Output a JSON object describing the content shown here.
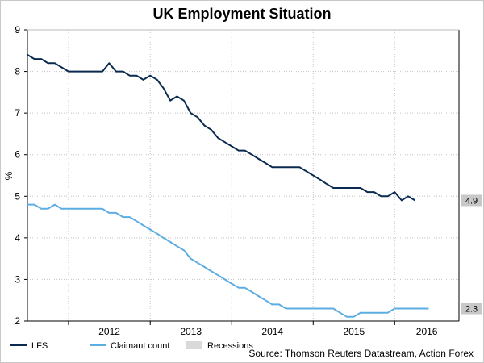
{
  "chart_data": {
    "type": "line",
    "title": "UK Employment Situation",
    "ylabel": "%",
    "xlabel": "",
    "ylim": [
      2,
      9
    ],
    "yticks": [
      "2",
      "3",
      "4",
      "5",
      "6",
      "7",
      "8",
      "9"
    ],
    "xlim": [
      "2011-07-01",
      "2016-10-15"
    ],
    "xtick_labels": [
      {
        "label": "2012",
        "date": "2012-01-01"
      },
      {
        "label": "2013",
        "date": "2013-01-01"
      },
      {
        "label": "2014",
        "date": "2014-01-01"
      },
      {
        "label": "2015",
        "date": "2015-01-01"
      },
      {
        "label": "2016",
        "date": "2016-01-01"
      }
    ],
    "grid": true,
    "legend_position": "bottom-left",
    "source": "Source: Thomson Reuters Datastream, Action Forex",
    "series": [
      {
        "name": "LFS",
        "color": "#0b2a4f",
        "last_label": "4.9",
        "points": [
          [
            "2011-07-01",
            8.4
          ],
          [
            "2011-08-01",
            8.3
          ],
          [
            "2011-09-01",
            8.3
          ],
          [
            "2011-10-01",
            8.2
          ],
          [
            "2011-11-01",
            8.2
          ],
          [
            "2011-12-01",
            8.1
          ],
          [
            "2012-01-01",
            8.0
          ],
          [
            "2012-02-01",
            8.0
          ],
          [
            "2012-03-01",
            8.0
          ],
          [
            "2012-04-01",
            8.0
          ],
          [
            "2012-05-01",
            8.0
          ],
          [
            "2012-06-01",
            8.0
          ],
          [
            "2012-07-01",
            8.2
          ],
          [
            "2012-08-01",
            8.0
          ],
          [
            "2012-09-01",
            8.0
          ],
          [
            "2012-10-01",
            7.9
          ],
          [
            "2012-11-01",
            7.9
          ],
          [
            "2012-12-01",
            7.8
          ],
          [
            "2013-01-01",
            7.9
          ],
          [
            "2013-02-01",
            7.8
          ],
          [
            "2013-03-01",
            7.6
          ],
          [
            "2013-04-01",
            7.3
          ],
          [
            "2013-05-01",
            7.4
          ],
          [
            "2013-06-01",
            7.3
          ],
          [
            "2013-07-01",
            7.0
          ],
          [
            "2013-08-01",
            6.9
          ],
          [
            "2013-09-01",
            6.7
          ],
          [
            "2013-10-01",
            6.6
          ],
          [
            "2013-11-01",
            6.4
          ],
          [
            "2013-12-01",
            6.3
          ],
          [
            "2014-01-01",
            6.2
          ],
          [
            "2014-02-01",
            6.1
          ],
          [
            "2014-03-01",
            6.1
          ],
          [
            "2014-04-01",
            6.0
          ],
          [
            "2014-05-01",
            5.9
          ],
          [
            "2014-06-01",
            5.8
          ],
          [
            "2014-07-01",
            5.7
          ],
          [
            "2014-08-01",
            5.7
          ],
          [
            "2014-09-01",
            5.7
          ],
          [
            "2014-10-01",
            5.7
          ],
          [
            "2014-11-01",
            5.7
          ],
          [
            "2014-12-01",
            5.6
          ],
          [
            "2015-01-01",
            5.5
          ],
          [
            "2015-02-01",
            5.4
          ],
          [
            "2015-03-01",
            5.3
          ],
          [
            "2015-04-01",
            5.2
          ],
          [
            "2015-05-01",
            5.2
          ],
          [
            "2015-06-01",
            5.2
          ],
          [
            "2015-07-01",
            5.2
          ],
          [
            "2015-08-01",
            5.2
          ],
          [
            "2015-09-01",
            5.1
          ],
          [
            "2015-10-01",
            5.1
          ],
          [
            "2015-11-01",
            5.0
          ],
          [
            "2015-12-01",
            5.0
          ],
          [
            "2016-01-01",
            5.1
          ],
          [
            "2016-02-01",
            4.9
          ],
          [
            "2016-03-01",
            5.0
          ],
          [
            "2016-04-01",
            4.9
          ]
        ]
      },
      {
        "name": "Claimant count",
        "color": "#5dade2",
        "last_label": "2.3",
        "points": [
          [
            "2011-07-01",
            4.8
          ],
          [
            "2011-08-01",
            4.8
          ],
          [
            "2011-09-01",
            4.7
          ],
          [
            "2011-10-01",
            4.7
          ],
          [
            "2011-11-01",
            4.8
          ],
          [
            "2011-12-01",
            4.7
          ],
          [
            "2012-01-01",
            4.7
          ],
          [
            "2012-02-01",
            4.7
          ],
          [
            "2012-03-01",
            4.7
          ],
          [
            "2012-04-01",
            4.7
          ],
          [
            "2012-05-01",
            4.7
          ],
          [
            "2012-06-01",
            4.7
          ],
          [
            "2012-07-01",
            4.6
          ],
          [
            "2012-08-01",
            4.6
          ],
          [
            "2012-09-01",
            4.5
          ],
          [
            "2012-10-01",
            4.5
          ],
          [
            "2012-11-01",
            4.4
          ],
          [
            "2012-12-01",
            4.3
          ],
          [
            "2013-01-01",
            4.2
          ],
          [
            "2013-02-01",
            4.1
          ],
          [
            "2013-03-01",
            4.0
          ],
          [
            "2013-04-01",
            3.9
          ],
          [
            "2013-05-01",
            3.8
          ],
          [
            "2013-06-01",
            3.7
          ],
          [
            "2013-07-01",
            3.5
          ],
          [
            "2013-08-01",
            3.4
          ],
          [
            "2013-09-01",
            3.3
          ],
          [
            "2013-10-01",
            3.2
          ],
          [
            "2013-11-01",
            3.1
          ],
          [
            "2013-12-01",
            3.0
          ],
          [
            "2014-01-01",
            2.9
          ],
          [
            "2014-02-01",
            2.8
          ],
          [
            "2014-03-01",
            2.8
          ],
          [
            "2014-04-01",
            2.7
          ],
          [
            "2014-05-01",
            2.6
          ],
          [
            "2014-06-01",
            2.5
          ],
          [
            "2014-07-01",
            2.4
          ],
          [
            "2014-08-01",
            2.4
          ],
          [
            "2014-09-01",
            2.3
          ],
          [
            "2014-10-01",
            2.3
          ],
          [
            "2014-11-01",
            2.3
          ],
          [
            "2014-12-01",
            2.3
          ],
          [
            "2015-01-01",
            2.3
          ],
          [
            "2015-02-01",
            2.3
          ],
          [
            "2015-03-01",
            2.3
          ],
          [
            "2015-04-01",
            2.3
          ],
          [
            "2015-05-01",
            2.2
          ],
          [
            "2015-06-01",
            2.1
          ],
          [
            "2015-07-01",
            2.1
          ],
          [
            "2015-08-01",
            2.2
          ],
          [
            "2015-09-01",
            2.2
          ],
          [
            "2015-10-01",
            2.2
          ],
          [
            "2015-11-01",
            2.2
          ],
          [
            "2015-12-01",
            2.2
          ],
          [
            "2016-01-01",
            2.3
          ],
          [
            "2016-02-01",
            2.3
          ],
          [
            "2016-03-01",
            2.3
          ],
          [
            "2016-04-01",
            2.3
          ],
          [
            "2016-05-01",
            2.3
          ],
          [
            "2016-06-01",
            2.3
          ]
        ]
      }
    ],
    "legend": [
      {
        "label": "LFS",
        "color": "#0b2a4f",
        "kind": "line"
      },
      {
        "label": "Claimant count",
        "color": "#5dade2",
        "kind": "line"
      },
      {
        "label": "Recessions",
        "color": "#d9d9d9",
        "kind": "box"
      }
    ]
  }
}
